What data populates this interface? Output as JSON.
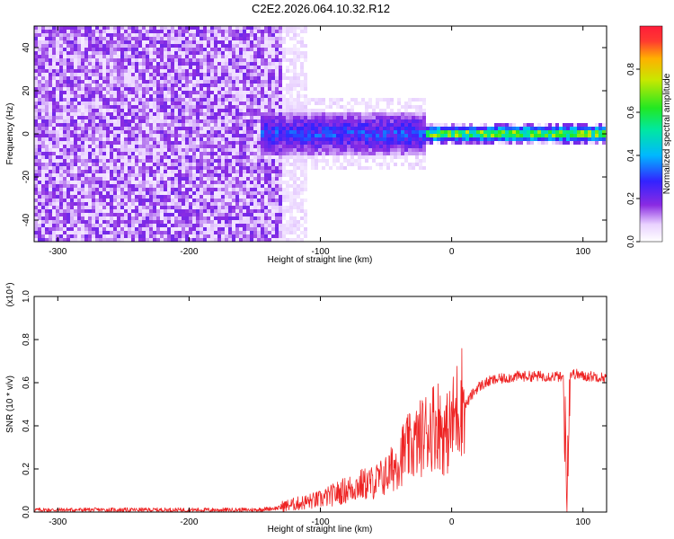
{
  "title": "C2E2.2026.064.10.32.R12",
  "colors": {
    "axis": "#000000",
    "snr_line": "#ee2222",
    "background": "#ffffff"
  },
  "chart_data": [
    {
      "type": "heatmap",
      "name": "spectrogram",
      "xlabel": "Height of straight line (km)",
      "ylabel": "Frequency (Hz)",
      "xlim": [
        -318,
        118
      ],
      "ylim": [
        -50,
        50
      ],
      "xticks": [
        -300,
        -200,
        -100,
        0,
        100
      ],
      "xtick_labels": [
        "-300",
        "-200",
        "-100",
        "0",
        "100"
      ],
      "yticks": [
        -40,
        -20,
        0,
        20,
        40
      ],
      "ytick_labels": [
        "-40",
        "-20",
        "0",
        "20",
        "40"
      ],
      "colorbar": {
        "label": "Normalized spectral amplitude",
        "range": [
          0.0,
          1.0
        ],
        "ticks": [
          0.0,
          0.2,
          0.4,
          0.6,
          0.8
        ],
        "tick_labels": [
          "0.0",
          "0.2",
          "0.4",
          "0.6",
          "0.8"
        ],
        "colormap": "rainbow (white-violet-blue-cyan-green-yellow-red)"
      },
      "regions": [
        {
          "x_range": [
            -318,
            -130
          ],
          "freq_range": [
            -50,
            50
          ],
          "amplitude": 0.12,
          "description": "broadband noise"
        },
        {
          "x_range": [
            -130,
            -110
          ],
          "freq_range": [
            -50,
            50
          ],
          "amplitude": 0.05,
          "description": "fading noise"
        },
        {
          "x_range": [
            -145,
            -20
          ],
          "freq_center": 0,
          "freq_halfwidth": 10,
          "amplitude": 0.35,
          "description": "emerging tone"
        },
        {
          "x_range": [
            -20,
            118
          ],
          "freq_center": 0,
          "freq_halfwidth": 3,
          "amplitude": 0.85,
          "description": "narrow strong tone"
        }
      ]
    },
    {
      "type": "line",
      "name": "snr",
      "xlabel": "Height of straight line (km)",
      "ylabel": "SNR (10 * v/v)",
      "y_multiplier": "(x10⁴)",
      "xlim": [
        -318,
        118
      ],
      "ylim": [
        0.0,
        1.0
      ],
      "xticks": [
        -300,
        -200,
        -100,
        0,
        100
      ],
      "xtick_labels": [
        "-300",
        "-200",
        "-100",
        "0",
        "100"
      ],
      "yticks": [
        0.0,
        0.2,
        0.4,
        0.6,
        0.8,
        1.0
      ],
      "ytick_labels": [
        "0.0",
        "0.2",
        "0.4",
        "0.6",
        "0.8",
        "1.0"
      ],
      "series": [
        {
          "name": "SNR",
          "x": [
            -318,
            -250,
            -200,
            -150,
            -130,
            -120,
            -110,
            -100,
            -90,
            -80,
            -70,
            -60,
            -50,
            -45,
            -40,
            -35,
            -30,
            -25,
            -20,
            -15,
            -10,
            -5,
            0,
            5,
            10,
            15,
            20,
            30,
            40,
            50,
            60,
            70,
            80,
            85,
            88,
            90,
            95,
            100,
            110,
            118
          ],
          "y": [
            0.01,
            0.01,
            0.01,
            0.01,
            0.02,
            0.03,
            0.04,
            0.05,
            0.07,
            0.09,
            0.11,
            0.12,
            0.15,
            0.18,
            0.22,
            0.26,
            0.27,
            0.3,
            0.33,
            0.36,
            0.37,
            0.31,
            0.36,
            0.44,
            0.49,
            0.54,
            0.58,
            0.61,
            0.62,
            0.63,
            0.63,
            0.63,
            0.63,
            0.62,
            0.1,
            0.64,
            0.64,
            0.63,
            0.63,
            0.62
          ]
        }
      ]
    }
  ]
}
